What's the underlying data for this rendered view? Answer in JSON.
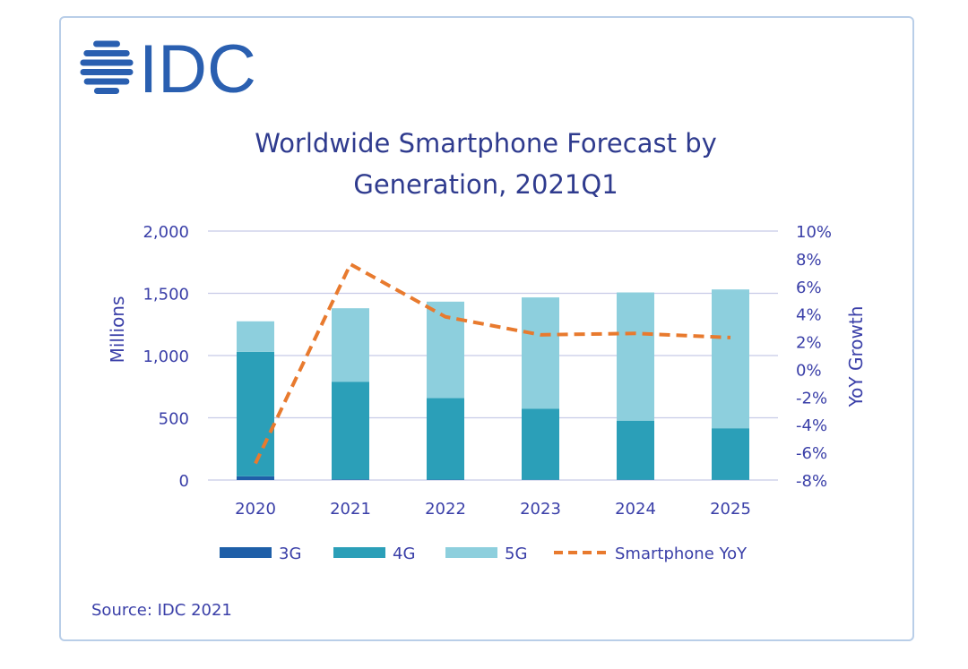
{
  "brand": {
    "logo_text": "IDC",
    "color": "#2a5fb0"
  },
  "chart_data": {
    "type": "bar",
    "stacked": true,
    "title_lines": [
      "Worldwide Smartphone Forecast by",
      "Generation, 2021Q1"
    ],
    "categories": [
      "2020",
      "2021",
      "2022",
      "2023",
      "2024",
      "2025"
    ],
    "series": [
      {
        "name": "3G",
        "values": [
          30,
          5,
          3,
          2,
          2,
          1
        ],
        "color": "#1f5fa8"
      },
      {
        "name": "4G",
        "values": [
          1000,
          785,
          655,
          570,
          475,
          415
        ],
        "color": "#2b9fb8"
      },
      {
        "name": "5G",
        "values": [
          245,
          590,
          775,
          895,
          1030,
          1115
        ],
        "color": "#8dcfdd"
      }
    ],
    "line_series": {
      "name": "Smartphone YoY",
      "values": [
        -6.8,
        7.6,
        3.8,
        2.5,
        2.6,
        2.3
      ],
      "color": "#e87a2e",
      "style": "dashed",
      "axis": "right"
    },
    "ylabel": "Millions",
    "ylim": [
      0,
      2000
    ],
    "y_ticks": [
      0,
      500,
      1000,
      1500,
      2000
    ],
    "y_tick_labels": [
      "0",
      "500",
      "1,000",
      "1,500",
      "2,000"
    ],
    "y2label": "YoY Growth",
    "y2lim": [
      -8,
      10
    ],
    "y2_ticks": [
      -8,
      -6,
      -4,
      -2,
      0,
      2,
      4,
      6,
      8,
      10
    ],
    "y2_tick_labels": [
      "-8%",
      "-6%",
      "-4%",
      "-2%",
      "0%",
      "2%",
      "4%",
      "6%",
      "8%",
      "10%"
    ],
    "grid": true,
    "legend_position": "bottom",
    "legend": [
      "3G",
      "4G",
      "5G",
      "Smartphone YoY"
    ]
  },
  "source": "Source: IDC 2021"
}
